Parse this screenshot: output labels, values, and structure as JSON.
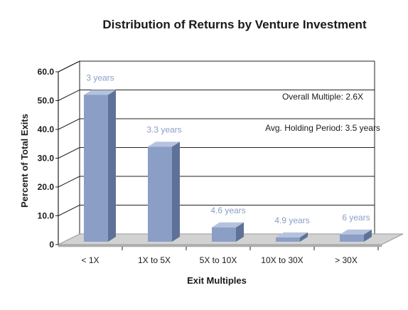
{
  "chart_data": {
    "type": "bar",
    "title": "Distribution of Returns by Venture Investment",
    "xlabel": "Exit Multiples",
    "ylabel": "Percent of Total Exits",
    "ylim": [
      0,
      60
    ],
    "yticks": [
      "0",
      "10.0",
      "20.0",
      "30.0",
      "40.0",
      "50.0",
      "60.0"
    ],
    "categories": [
      "< 1X",
      "1X to 5X",
      "5X to 10X",
      "10X to 30X",
      "> 30X"
    ],
    "values": [
      51,
      33,
      5,
      1.5,
      2.5
    ],
    "data_labels": [
      "3 years",
      "3.3 years",
      "4.6 years",
      "4.9 years",
      "6 years"
    ],
    "annotations": [
      "Overall Multiple: 2.6X",
      "Avg. Holding Period: 3.5 years"
    ],
    "grid": true,
    "colors": {
      "bar_front": "#8a9ec6",
      "bar_side": "#5f7196",
      "bar_top": "#b4c2de",
      "data_label": "#8a9ec6",
      "floor": "#d2d2d2",
      "floor_edge": "#9a9a9a",
      "text": "#1a1a1a",
      "grid": "#222222"
    }
  }
}
